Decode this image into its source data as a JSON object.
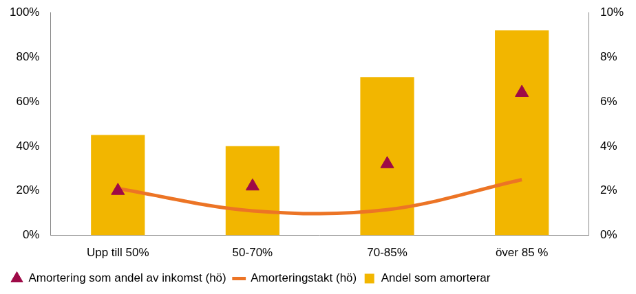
{
  "chart_data": {
    "type": "bar",
    "categories": [
      "Upp till 50%",
      "50-70%",
      "70-85%",
      "över 85 %"
    ],
    "series": [
      {
        "name": "Andel som amorterar",
        "type": "bar",
        "color": "#f2b600",
        "values": [
          45,
          40,
          71,
          92
        ]
      },
      {
        "name": "Amorteringstakt (hö)",
        "type": "line",
        "axis": "y2",
        "color": "#ec7425",
        "values": [
          2.1,
          1.1,
          1.15,
          2.5
        ]
      },
      {
        "name": "Amortering som andel av inkomst (hö)",
        "type": "scatter",
        "axis": "y2",
        "marker": "triangle",
        "color": "#9e0a47",
        "values": [
          2.0,
          2.2,
          3.2,
          6.4
        ]
      }
    ],
    "ylim": [
      0,
      100
    ],
    "yticks": [
      {
        "value": 0,
        "label": "0%"
      },
      {
        "value": 20,
        "label": "20%"
      },
      {
        "value": 40,
        "label": "40%"
      },
      {
        "value": 60,
        "label": "60%"
      },
      {
        "value": 80,
        "label": "80%"
      },
      {
        "value": 100,
        "label": "100%"
      }
    ],
    "y2lim": [
      0,
      10
    ],
    "y2ticks": [
      {
        "value": 0,
        "label": "0%"
      },
      {
        "value": 2,
        "label": "2%"
      },
      {
        "value": 4,
        "label": "4%"
      },
      {
        "value": 6,
        "label": "6%"
      },
      {
        "value": 8,
        "label": "8%"
      },
      {
        "value": 10,
        "label": "10%"
      }
    ],
    "grid": false,
    "legend": "bottom"
  }
}
